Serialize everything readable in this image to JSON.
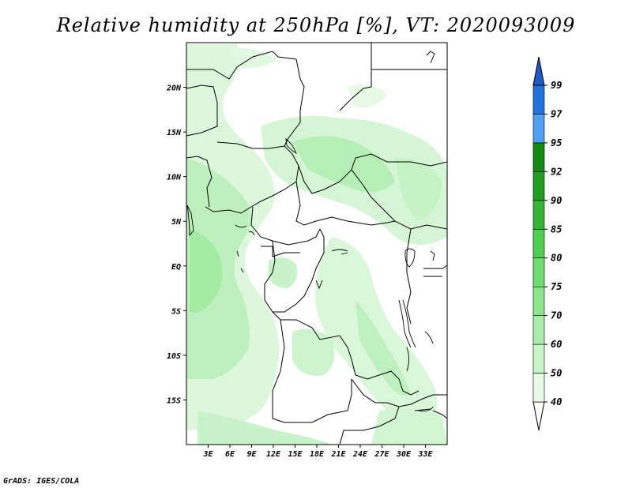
{
  "title": "Relative humidity at 250hPa [%], VT: 2020093009",
  "footer": "GrADS: IGES/COLA",
  "map": {
    "lon_range": [
      0,
      36
    ],
    "lat_range": [
      -20,
      25
    ],
    "lon_ticks": [
      "3E",
      "6E",
      "9E",
      "12E",
      "15E",
      "18E",
      "21E",
      "24E",
      "27E",
      "30E",
      "33E"
    ],
    "lat_ticks": [
      "20N",
      "15N",
      "10N",
      "5N",
      "EQ",
      "5S",
      "10S",
      "15S"
    ]
  },
  "legend": {
    "labels": [
      "40",
      "50",
      "60",
      "70",
      "75",
      "80",
      "85",
      "90",
      "92",
      "95",
      "97",
      "99"
    ],
    "colors": [
      "#ffffff",
      "#e6fae6",
      "#c8f5c8",
      "#a8eea8",
      "#8be68b",
      "#6edc6e",
      "#4fcf4f",
      "#35b435",
      "#1f9e1f",
      "#128a12",
      "#4f9ff0",
      "#2272dc",
      "#1e5ac3"
    ]
  }
}
